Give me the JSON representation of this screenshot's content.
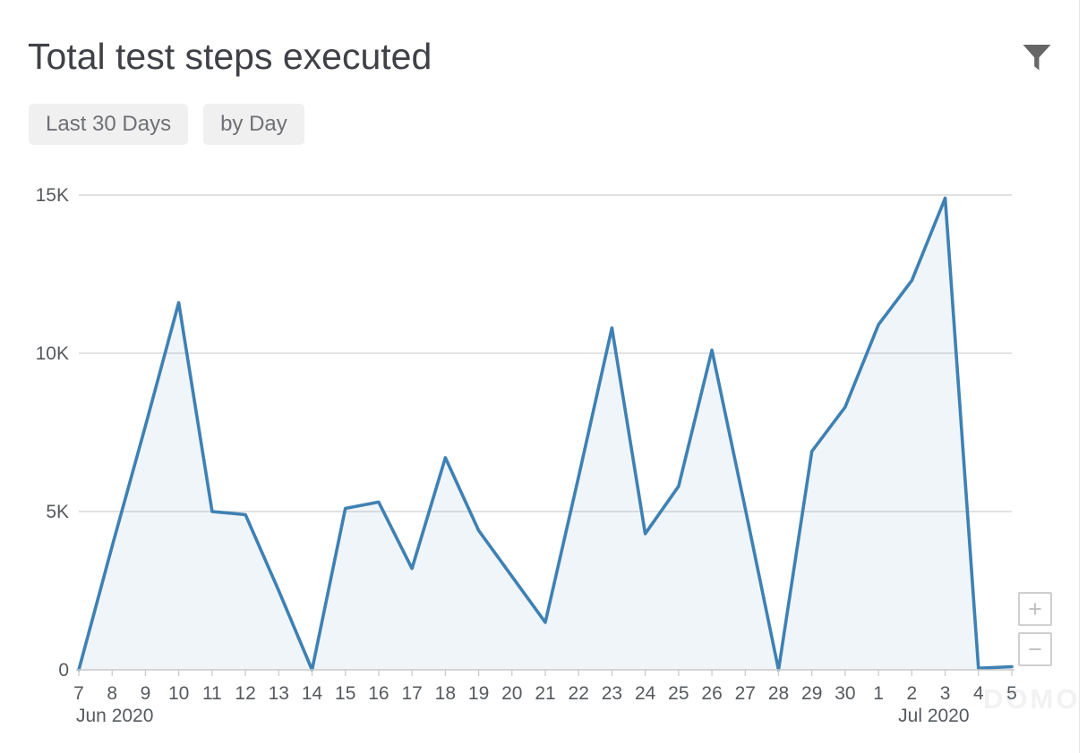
{
  "header": {
    "title": "Total test steps executed",
    "badges": [
      {
        "label": "Last 30 Days"
      },
      {
        "label": "by Day"
      }
    ]
  },
  "chart_controls": {
    "zoom_in": "+",
    "zoom_out": "−"
  },
  "watermark": "DOMO",
  "colors": {
    "line": "#3e81b4",
    "area_fill": "rgba(62,129,180,0.08)",
    "gridline": "#d9d9d9",
    "axis": "#c8c8c8",
    "tick_text": "#565a5f",
    "title_text": "#3f4147",
    "icon": "#666666"
  },
  "chart_data": {
    "type": "area",
    "title": "Total test steps executed",
    "xlabel": "",
    "ylabel": "",
    "ylim": [
      0,
      15000
    ],
    "grid": "horizontal",
    "legend": "none",
    "x": [
      "Jun 7",
      "Jun 8",
      "Jun 9",
      "Jun 10",
      "Jun 11",
      "Jun 12",
      "Jun 13",
      "Jun 14",
      "Jun 15",
      "Jun 16",
      "Jun 17",
      "Jun 18",
      "Jun 19",
      "Jun 20",
      "Jun 21",
      "Jun 22",
      "Jun 23",
      "Jun 24",
      "Jun 25",
      "Jun 26",
      "Jun 27",
      "Jun 28",
      "Jun 29",
      "Jun 30",
      "Jul 1",
      "Jul 2",
      "Jul 3",
      "Jul 4",
      "Jul 5"
    ],
    "x_tick_labels": [
      "7",
      "8",
      "9",
      "10",
      "11",
      "12",
      "13",
      "14",
      "15",
      "16",
      "17",
      "18",
      "19",
      "20",
      "21",
      "22",
      "23",
      "24",
      "25",
      "26",
      "27",
      "28",
      "29",
      "30",
      "1",
      "2",
      "3",
      "4",
      "5"
    ],
    "month_labels": [
      {
        "label": "Jun 2020",
        "index": 0
      },
      {
        "label": "Jul 2020",
        "index": 24
      }
    ],
    "values": [
      0,
      3900,
      7700,
      11600,
      5000,
      4900,
      2500,
      0,
      5100,
      5300,
      3200,
      6700,
      4400,
      2950,
      1500,
      6100,
      10800,
      4300,
      5800,
      10100,
      5100,
      0,
      6900,
      8300,
      10900,
      12300,
      14900,
      50,
      100
    ],
    "y_ticks": [
      {
        "value": 0,
        "label": "0"
      },
      {
        "value": 5000,
        "label": "5K"
      },
      {
        "value": 10000,
        "label": "10K"
      },
      {
        "value": 15000,
        "label": "15K"
      }
    ]
  }
}
